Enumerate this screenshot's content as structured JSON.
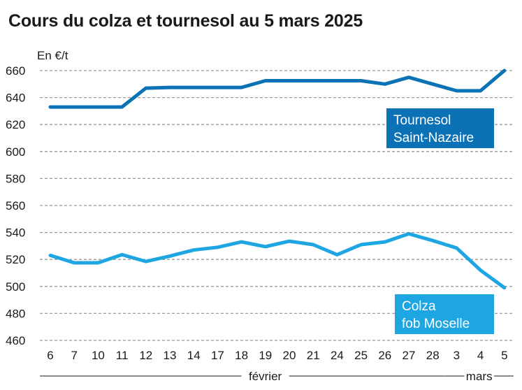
{
  "chart_data": {
    "type": "line",
    "title": "Cours du colza et tournesol au 5 mars 2025",
    "ylabel": "En €/t",
    "xlabel": "",
    "ylim": [
      460,
      660
    ],
    "yticks": [
      460,
      480,
      500,
      520,
      540,
      560,
      580,
      600,
      620,
      640,
      660
    ],
    "grid": "horizontal dashed",
    "categories": [
      "6",
      "7",
      "10",
      "11",
      "12",
      "13",
      "14",
      "17",
      "18",
      "19",
      "20",
      "21",
      "24",
      "25",
      "26",
      "27",
      "28",
      "3",
      "4",
      "5"
    ],
    "month_groups": [
      {
        "label": "février",
        "start": 0,
        "end": 16
      },
      {
        "label": "mars",
        "start": 17,
        "end": 19
      }
    ],
    "series": [
      {
        "name": "Tournesol Saint-Nazaire",
        "legend_lines": [
          "Tournesol",
          "Saint-Nazaire"
        ],
        "color": "#0b72b5",
        "values": [
          633,
          633,
          633,
          633,
          647,
          647.5,
          647.5,
          647.5,
          647.5,
          652.5,
          652.5,
          652.5,
          652.5,
          652.5,
          650,
          655,
          650,
          645,
          645,
          660
        ]
      },
      {
        "name": "Colza fob Moselle",
        "legend_lines": [
          "Colza",
          "fob Moselle"
        ],
        "color": "#1ea6e3",
        "values": [
          523,
          517.5,
          517.5,
          523.5,
          518.5,
          522.5,
          527,
          529,
          533,
          529.5,
          533.5,
          531,
          523.5,
          531,
          533,
          539,
          534,
          528.5,
          512,
          499
        ]
      }
    ]
  }
}
